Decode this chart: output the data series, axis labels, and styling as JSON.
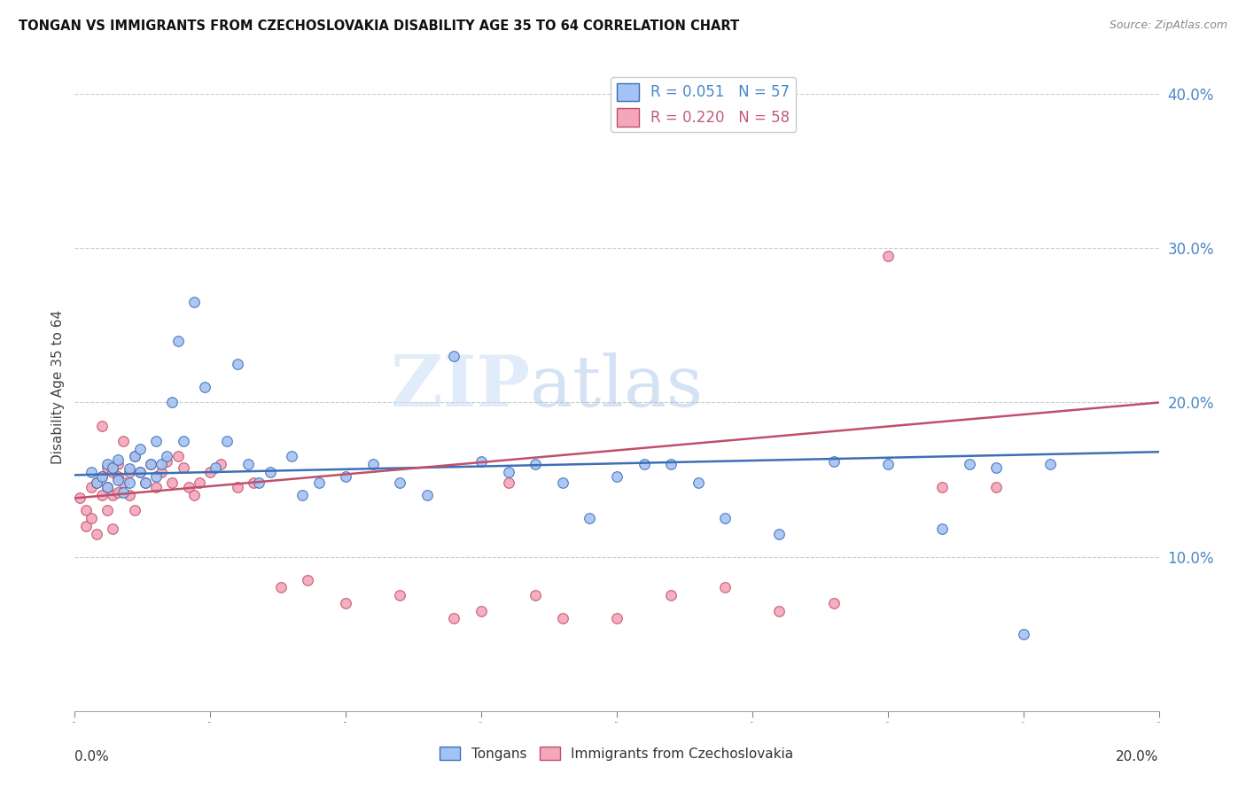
{
  "title": "TONGAN VS IMMIGRANTS FROM CZECHOSLOVAKIA DISABILITY AGE 35 TO 64 CORRELATION CHART",
  "source": "Source: ZipAtlas.com",
  "ylabel": "Disability Age 35 to 64",
  "xmin": 0.0,
  "xmax": 0.2,
  "ymin": 0.0,
  "ymax": 0.42,
  "yticks": [
    0.1,
    0.2,
    0.3,
    0.4
  ],
  "ytick_labels": [
    "10.0%",
    "20.0%",
    "30.0%",
    "40.0%"
  ],
  "xtick_labels": [
    "0.0%",
    "20.0%"
  ],
  "legend_entries": [
    {
      "label": "R = 0.051   N = 57",
      "color": "#4a86c8"
    },
    {
      "label": "R = 0.220   N = 58",
      "color": "#c45a7a"
    }
  ],
  "legend_bottom": [
    "Tongans",
    "Immigrants from Czechoslovakia"
  ],
  "color_blue": "#a4c2f4",
  "color_pink": "#f4a7b9",
  "line_blue": "#3d6fb5",
  "line_pink": "#c0506a",
  "watermark_zip": "ZIP",
  "watermark_atlas": "atlas",
  "blue_line_x": [
    0.0,
    0.2
  ],
  "blue_line_y": [
    0.153,
    0.168
  ],
  "pink_line_x": [
    0.0,
    0.2
  ],
  "pink_line_y": [
    0.138,
    0.2
  ],
  "tongans_x": [
    0.003,
    0.004,
    0.005,
    0.006,
    0.006,
    0.007,
    0.008,
    0.008,
    0.009,
    0.01,
    0.01,
    0.011,
    0.012,
    0.012,
    0.013,
    0.014,
    0.015,
    0.015,
    0.016,
    0.017,
    0.018,
    0.019,
    0.02,
    0.022,
    0.024,
    0.026,
    0.028,
    0.03,
    0.032,
    0.034,
    0.036,
    0.04,
    0.042,
    0.045,
    0.05,
    0.055,
    0.06,
    0.065,
    0.07,
    0.075,
    0.08,
    0.085,
    0.09,
    0.095,
    0.1,
    0.105,
    0.11,
    0.115,
    0.12,
    0.13,
    0.14,
    0.15,
    0.16,
    0.165,
    0.17,
    0.175,
    0.18
  ],
  "tongans_y": [
    0.155,
    0.148,
    0.152,
    0.16,
    0.145,
    0.158,
    0.15,
    0.163,
    0.142,
    0.157,
    0.148,
    0.165,
    0.155,
    0.17,
    0.148,
    0.16,
    0.152,
    0.175,
    0.16,
    0.165,
    0.2,
    0.24,
    0.175,
    0.265,
    0.21,
    0.158,
    0.175,
    0.225,
    0.16,
    0.148,
    0.155,
    0.165,
    0.14,
    0.148,
    0.152,
    0.16,
    0.148,
    0.14,
    0.23,
    0.162,
    0.155,
    0.16,
    0.148,
    0.125,
    0.152,
    0.16,
    0.16,
    0.148,
    0.125,
    0.115,
    0.162,
    0.16,
    0.118,
    0.16,
    0.158,
    0.05,
    0.16
  ],
  "czech_x": [
    0.001,
    0.002,
    0.002,
    0.003,
    0.003,
    0.004,
    0.004,
    0.005,
    0.005,
    0.005,
    0.006,
    0.006,
    0.006,
    0.007,
    0.007,
    0.007,
    0.008,
    0.008,
    0.008,
    0.009,
    0.009,
    0.01,
    0.01,
    0.011,
    0.011,
    0.012,
    0.013,
    0.014,
    0.015,
    0.016,
    0.017,
    0.018,
    0.019,
    0.02,
    0.021,
    0.022,
    0.023,
    0.025,
    0.027,
    0.03,
    0.033,
    0.038,
    0.043,
    0.05,
    0.06,
    0.07,
    0.075,
    0.08,
    0.085,
    0.09,
    0.1,
    0.11,
    0.12,
    0.13,
    0.14,
    0.15,
    0.16,
    0.17
  ],
  "czech_y": [
    0.138,
    0.13,
    0.12,
    0.145,
    0.125,
    0.115,
    0.148,
    0.14,
    0.152,
    0.185,
    0.158,
    0.145,
    0.13,
    0.155,
    0.14,
    0.118,
    0.152,
    0.142,
    0.16,
    0.148,
    0.175,
    0.155,
    0.14,
    0.165,
    0.13,
    0.155,
    0.148,
    0.16,
    0.145,
    0.155,
    0.162,
    0.148,
    0.165,
    0.158,
    0.145,
    0.14,
    0.148,
    0.155,
    0.16,
    0.145,
    0.148,
    0.08,
    0.085,
    0.07,
    0.075,
    0.06,
    0.065,
    0.148,
    0.075,
    0.06,
    0.06,
    0.075,
    0.08,
    0.065,
    0.07,
    0.295,
    0.145,
    0.145
  ]
}
